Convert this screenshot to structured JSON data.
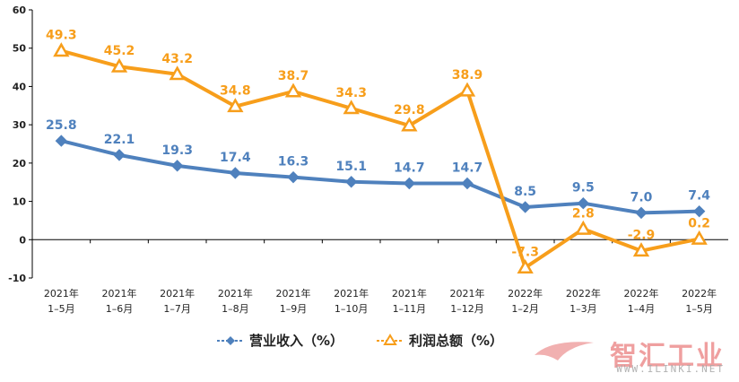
{
  "chart_data": {
    "type": "line",
    "categories": [
      [
        "2021年",
        "1–5月"
      ],
      [
        "2021年",
        "1–6月"
      ],
      [
        "2021年",
        "1–7月"
      ],
      [
        "2021年",
        "1–8月"
      ],
      [
        "2021年",
        "1–9月"
      ],
      [
        "2021年",
        "1–10月"
      ],
      [
        "2021年",
        "1–11月"
      ],
      [
        "2021年",
        "1–12月"
      ],
      [
        "2022年",
        "1–2月"
      ],
      [
        "2022年",
        "1–3月"
      ],
      [
        "2022年",
        "1–4月"
      ],
      [
        "2022年",
        "1–5月"
      ]
    ],
    "series": [
      {
        "name": "营业收入（%）",
        "values": [
          25.8,
          22.1,
          19.3,
          17.4,
          16.3,
          15.1,
          14.7,
          14.7,
          8.5,
          9.5,
          7.0,
          7.4
        ],
        "labels": [
          "25.8",
          "22.1",
          "19.3",
          "17.4",
          "16.3",
          "15.1",
          "14.7",
          "14.7",
          "8.5",
          "9.5",
          "7.0",
          "7.4"
        ],
        "color": "#4f81bd",
        "marker": "diamond"
      },
      {
        "name": "利润总额（%）",
        "values": [
          49.3,
          45.2,
          43.2,
          34.8,
          38.7,
          34.3,
          29.8,
          38.9,
          -7.3,
          2.8,
          -2.9,
          0.2
        ],
        "labels": [
          "49.3",
          "45.2",
          "43.2",
          "34.8",
          "38.7",
          "34.3",
          "29.8",
          "38.9",
          "-7.3",
          "2.8",
          "-2.9",
          "0.2"
        ],
        "color": "#f79e1b",
        "marker": "triangle"
      }
    ],
    "yticks": [
      "60",
      "50",
      "40",
      "30",
      "20",
      "10",
      "0",
      "-10"
    ],
    "ylim": [
      -10,
      60
    ],
    "grid": false,
    "legend": "bottom",
    "xlabel": "",
    "ylabel": "",
    "title": ""
  },
  "watermark": {
    "text": "智汇工业",
    "url": "WWW.ILINKI.NET",
    "color": "#e05050"
  }
}
